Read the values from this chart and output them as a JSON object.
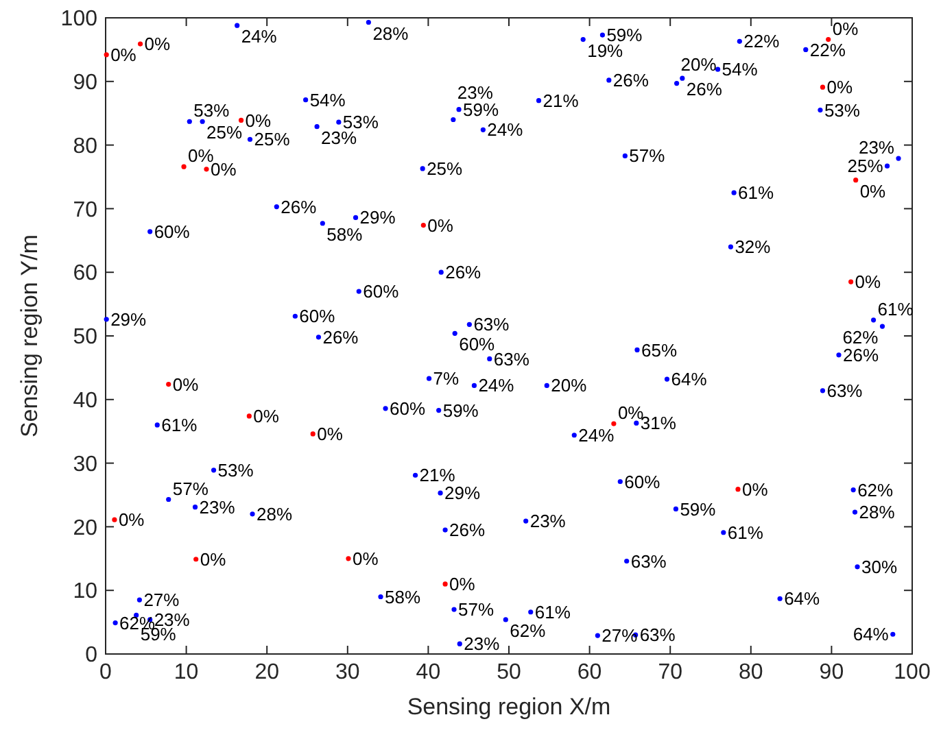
{
  "chart_data": {
    "type": "scatter",
    "xlabel": "Sensing region X/m",
    "ylabel": "Sensing region Y/m",
    "xlim": [
      0,
      100
    ],
    "ylim": [
      0,
      100
    ],
    "xticks": [
      0,
      10,
      20,
      30,
      40,
      50,
      60,
      70,
      80,
      90,
      100
    ],
    "yticks": [
      0,
      10,
      20,
      30,
      40,
      50,
      60,
      70,
      80,
      90,
      100
    ],
    "marker": "circle",
    "grid": false,
    "series": [
      {
        "color": "#0000ff",
        "x": [
          16.3,
          32.6,
          59.2,
          61.6,
          62.4,
          53.7,
          43.8,
          43.1,
          46.8,
          64.4,
          39.3,
          41.6,
          45.1,
          43.3,
          78.6,
          86.8,
          71.5,
          70.8,
          75.9,
          88.6,
          98.3,
          96.9,
          77.9,
          77.5,
          95.2,
          96.3,
          24.8,
          10.4,
          12.0,
          26.2,
          28.9,
          17.9,
          21.2,
          26.9,
          31.0,
          5.5,
          31.4,
          0.1,
          23.5,
          26.4,
          6.4,
          13.4,
          7.8,
          11.1,
          18.2,
          4.2,
          3.8,
          5.5,
          1.2,
          65.9,
          47.6,
          40.1,
          45.7,
          54.7,
          34.7,
          41.3,
          65.8,
          58.1,
          38.4,
          41.5,
          63.8,
          52.1,
          42.1,
          64.6,
          34.1,
          43.2,
          49.6,
          52.7,
          43.9,
          61.0,
          65.7,
          90.9,
          69.6,
          88.9,
          92.7,
          92.9,
          70.7,
          76.6,
          93.2,
          83.6,
          97.6
        ],
        "values": [
          98.8,
          99.3,
          96.6,
          97.3,
          90.2,
          87.0,
          85.6,
          84.0,
          82.4,
          78.3,
          76.3,
          60.0,
          51.8,
          50.4,
          96.3,
          95.0,
          90.5,
          89.7,
          91.9,
          85.5,
          77.9,
          76.7,
          72.5,
          64.0,
          52.5,
          51.5,
          87.1,
          83.7,
          83.7,
          82.9,
          83.6,
          80.9,
          70.3,
          67.7,
          68.6,
          66.4,
          57.0,
          52.6,
          53.1,
          49.8,
          36.0,
          28.9,
          24.3,
          23.1,
          22.0,
          8.5,
          6.1,
          5.4,
          4.9,
          47.8,
          46.4,
          43.3,
          42.2,
          42.2,
          38.6,
          38.3,
          36.3,
          34.4,
          28.1,
          25.3,
          27.1,
          20.9,
          19.5,
          14.6,
          9.0,
          7.0,
          5.4,
          6.6,
          1.6,
          2.9,
          3.0,
          47.0,
          43.2,
          41.4,
          25.8,
          22.3,
          22.8,
          19.1,
          13.7,
          8.7,
          3.1
        ]
      },
      {
        "color": "#ff0000",
        "x": [
          0.1,
          4.3,
          16.8,
          9.7,
          12.5,
          39.4,
          89.6,
          88.9,
          93.0,
          92.4,
          7.8,
          17.8,
          25.7,
          1.1,
          11.2,
          30.1,
          63.0,
          42.1,
          78.4
        ],
        "values": [
          94.2,
          95.9,
          83.9,
          76.6,
          76.2,
          67.4,
          96.6,
          89.1,
          74.5,
          58.5,
          42.4,
          37.4,
          34.6,
          21.1,
          14.9,
          15.0,
          36.2,
          11.0,
          25.9
        ]
      }
    ],
    "annotations": [
      {
        "text": "24%",
        "x": 16.3,
        "y": 98.8
      },
      {
        "text": "28%",
        "x": 32.6,
        "y": 99.3
      },
      {
        "text": "19%",
        "x": 59.2,
        "y": 96.6
      },
      {
        "text": "59%",
        "x": 61.6,
        "y": 97.3
      },
      {
        "text": "26%",
        "x": 62.4,
        "y": 90.2
      },
      {
        "text": "21%",
        "x": 53.7,
        "y": 87.0
      },
      {
        "text": "59%",
        "x": 43.8,
        "y": 85.6
      },
      {
        "text": "23%",
        "x": 43.1,
        "y": 84.0
      },
      {
        "text": "24%",
        "x": 46.8,
        "y": 82.4
      },
      {
        "text": "57%",
        "x": 64.4,
        "y": 78.3
      },
      {
        "text": "25%",
        "x": 39.3,
        "y": 76.3
      },
      {
        "text": "26%",
        "x": 41.6,
        "y": 60.0
      },
      {
        "text": "63%",
        "x": 45.1,
        "y": 51.8
      },
      {
        "text": "60%",
        "x": 43.3,
        "y": 50.4
      },
      {
        "text": "22%",
        "x": 78.6,
        "y": 96.3
      },
      {
        "text": "22%",
        "x": 86.8,
        "y": 95.0
      },
      {
        "text": "26%",
        "x": 71.5,
        "y": 90.5
      },
      {
        "text": "20%",
        "x": 70.8,
        "y": 89.7
      },
      {
        "text": "54%",
        "x": 75.9,
        "y": 91.9
      },
      {
        "text": "53%",
        "x": 88.6,
        "y": 85.5
      },
      {
        "text": "23%",
        "x": 98.3,
        "y": 77.9
      },
      {
        "text": "25%",
        "x": 96.9,
        "y": 76.7
      },
      {
        "text": "61%",
        "x": 77.9,
        "y": 72.5
      },
      {
        "text": "32%",
        "x": 77.5,
        "y": 64.0
      },
      {
        "text": "61%",
        "x": 95.2,
        "y": 52.5
      },
      {
        "text": "62%",
        "x": 96.3,
        "y": 51.5
      },
      {
        "text": "54%",
        "x": 24.8,
        "y": 87.1
      },
      {
        "text": "53%",
        "x": 10.4,
        "y": 83.7
      },
      {
        "text": "25%",
        "x": 12.0,
        "y": 83.7
      },
      {
        "text": "23%",
        "x": 26.2,
        "y": 82.9
      },
      {
        "text": "53%",
        "x": 28.9,
        "y": 83.6
      },
      {
        "text": "25%",
        "x": 17.9,
        "y": 80.9
      },
      {
        "text": "26%",
        "x": 21.2,
        "y": 70.3
      },
      {
        "text": "58%",
        "x": 26.9,
        "y": 67.7
      },
      {
        "text": "29%",
        "x": 31.0,
        "y": 68.6
      },
      {
        "text": "60%",
        "x": 5.5,
        "y": 66.4
      },
      {
        "text": "60%",
        "x": 31.4,
        "y": 57.0
      },
      {
        "text": "29%",
        "x": 0.1,
        "y": 52.6
      },
      {
        "text": "60%",
        "x": 23.5,
        "y": 53.1
      },
      {
        "text": "26%",
        "x": 26.4,
        "y": 49.8
      },
      {
        "text": "61%",
        "x": 6.4,
        "y": 36.0
      },
      {
        "text": "53%",
        "x": 13.4,
        "y": 28.9
      },
      {
        "text": "57%",
        "x": 7.8,
        "y": 24.3
      },
      {
        "text": "23%",
        "x": 11.1,
        "y": 23.1
      },
      {
        "text": "28%",
        "x": 18.2,
        "y": 22.0
      },
      {
        "text": "27%",
        "x": 4.2,
        "y": 8.5
      },
      {
        "text": "59%",
        "x": 3.8,
        "y": 6.1
      },
      {
        "text": "23%",
        "x": 5.5,
        "y": 5.4
      },
      {
        "text": "62%",
        "x": 1.2,
        "y": 4.9
      },
      {
        "text": "65%",
        "x": 65.9,
        "y": 47.8
      },
      {
        "text": "63%",
        "x": 47.6,
        "y": 46.4
      },
      {
        "text": "7%",
        "x": 40.1,
        "y": 43.3
      },
      {
        "text": "24%",
        "x": 45.7,
        "y": 42.2
      },
      {
        "text": "20%",
        "x": 54.7,
        "y": 42.2
      },
      {
        "text": "60%",
        "x": 34.7,
        "y": 38.6
      },
      {
        "text": "59%",
        "x": 41.3,
        "y": 38.3
      },
      {
        "text": "31%",
        "x": 65.8,
        "y": 36.3
      },
      {
        "text": "24%",
        "x": 58.1,
        "y": 34.4
      },
      {
        "text": "21%",
        "x": 38.4,
        "y": 28.1
      },
      {
        "text": "29%",
        "x": 41.5,
        "y": 25.3
      },
      {
        "text": "60%",
        "x": 63.8,
        "y": 27.1
      },
      {
        "text": "23%",
        "x": 52.1,
        "y": 20.9
      },
      {
        "text": "26%",
        "x": 42.1,
        "y": 19.5
      },
      {
        "text": "63%",
        "x": 64.6,
        "y": 14.6
      },
      {
        "text": "58%",
        "x": 34.1,
        "y": 9.0
      },
      {
        "text": "57%",
        "x": 43.2,
        "y": 7.0
      },
      {
        "text": "62%",
        "x": 49.6,
        "y": 5.4
      },
      {
        "text": "61%",
        "x": 52.7,
        "y": 6.6
      },
      {
        "text": "23%",
        "x": 43.9,
        "y": 1.6
      },
      {
        "text": "27%",
        "x": 61.0,
        "y": 2.9
      },
      {
        "text": "63%",
        "x": 65.7,
        "y": 3.0
      },
      {
        "text": "26%",
        "x": 90.9,
        "y": 47.0
      },
      {
        "text": "64%",
        "x": 69.6,
        "y": 43.2
      },
      {
        "text": "63%",
        "x": 88.9,
        "y": 41.4
      },
      {
        "text": "62%",
        "x": 92.7,
        "y": 25.8
      },
      {
        "text": "28%",
        "x": 92.9,
        "y": 22.3
      },
      {
        "text": "59%",
        "x": 70.7,
        "y": 22.8
      },
      {
        "text": "61%",
        "x": 76.6,
        "y": 19.1
      },
      {
        "text": "30%",
        "x": 93.2,
        "y": 13.7
      },
      {
        "text": "64%",
        "x": 83.6,
        "y": 8.7
      },
      {
        "text": "64%",
        "x": 97.6,
        "y": 3.1
      },
      {
        "text": "0%",
        "x": 0.1,
        "y": 94.2
      },
      {
        "text": "0%",
        "x": 4.3,
        "y": 95.9
      },
      {
        "text": "0%",
        "x": 16.8,
        "y": 83.9
      },
      {
        "text": "0%",
        "x": 9.7,
        "y": 76.6
      },
      {
        "text": "0%",
        "x": 12.5,
        "y": 76.2
      },
      {
        "text": "0%",
        "x": 39.4,
        "y": 67.4
      },
      {
        "text": "0%",
        "x": 89.6,
        "y": 96.6
      },
      {
        "text": "0%",
        "x": 88.9,
        "y": 89.1
      },
      {
        "text": "0%",
        "x": 93.0,
        "y": 74.5
      },
      {
        "text": "0%",
        "x": 92.4,
        "y": 58.5
      },
      {
        "text": "0%",
        "x": 7.8,
        "y": 42.4
      },
      {
        "text": "0%",
        "x": 17.8,
        "y": 37.4
      },
      {
        "text": "0%",
        "x": 25.7,
        "y": 34.6
      },
      {
        "text": "0%",
        "x": 1.1,
        "y": 21.1
      },
      {
        "text": "0%",
        "x": 11.2,
        "y": 14.9
      },
      {
        "text": "0%",
        "x": 30.1,
        "y": 15.0
      },
      {
        "text": "0%",
        "x": 63.0,
        "y": 36.2
      },
      {
        "text": "0%",
        "x": 42.1,
        "y": 11.0
      },
      {
        "text": "0%",
        "x": 78.4,
        "y": 25.9
      }
    ]
  }
}
